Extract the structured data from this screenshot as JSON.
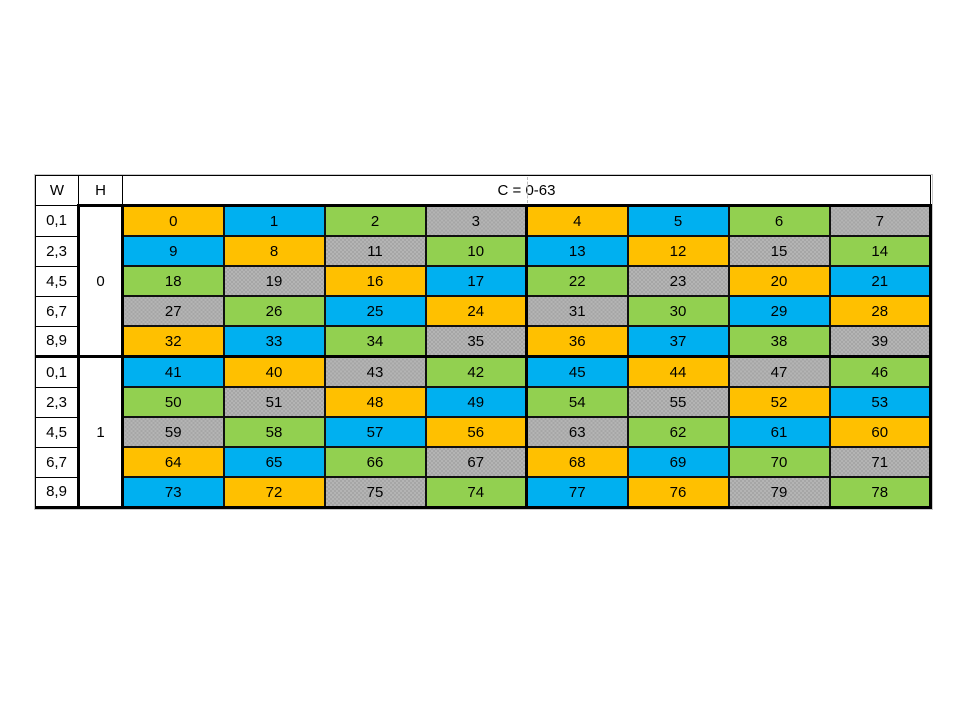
{
  "header": {
    "w": "W",
    "h": "H",
    "c": "C = 0-63"
  },
  "chart_data": {
    "type": "table",
    "title": "C = 0-63",
    "corner_headers": {
      "w": "W",
      "h": "H"
    },
    "row_group_label": "H",
    "row_label": "W",
    "color_legend": {
      "orange": "#FFC000",
      "blue": "#00B0F0",
      "green": "#92D050",
      "gray": "#A6A6A6"
    },
    "blocks": [
      {
        "h": "0",
        "rows": [
          {
            "w": "0,1",
            "cells": [
              {
                "value": 0,
                "color": "orange"
              },
              {
                "value": 1,
                "color": "blue"
              },
              {
                "value": 2,
                "color": "green"
              },
              {
                "value": 3,
                "color": "gray"
              },
              {
                "value": 4,
                "color": "orange"
              },
              {
                "value": 5,
                "color": "blue"
              },
              {
                "value": 6,
                "color": "green"
              },
              {
                "value": 7,
                "color": "gray"
              }
            ]
          },
          {
            "w": "2,3",
            "cells": [
              {
                "value": 9,
                "color": "blue"
              },
              {
                "value": 8,
                "color": "orange"
              },
              {
                "value": 11,
                "color": "gray"
              },
              {
                "value": 10,
                "color": "green"
              },
              {
                "value": 13,
                "color": "blue"
              },
              {
                "value": 12,
                "color": "orange"
              },
              {
                "value": 15,
                "color": "gray"
              },
              {
                "value": 14,
                "color": "green"
              }
            ]
          },
          {
            "w": "4,5",
            "cells": [
              {
                "value": 18,
                "color": "green"
              },
              {
                "value": 19,
                "color": "gray"
              },
              {
                "value": 16,
                "color": "orange"
              },
              {
                "value": 17,
                "color": "blue"
              },
              {
                "value": 22,
                "color": "green"
              },
              {
                "value": 23,
                "color": "gray"
              },
              {
                "value": 20,
                "color": "orange"
              },
              {
                "value": 21,
                "color": "blue"
              }
            ]
          },
          {
            "w": "6,7",
            "cells": [
              {
                "value": 27,
                "color": "gray"
              },
              {
                "value": 26,
                "color": "green"
              },
              {
                "value": 25,
                "color": "blue"
              },
              {
                "value": 24,
                "color": "orange"
              },
              {
                "value": 31,
                "color": "gray"
              },
              {
                "value": 30,
                "color": "green"
              },
              {
                "value": 29,
                "color": "blue"
              },
              {
                "value": 28,
                "color": "orange"
              }
            ]
          },
          {
            "w": "8,9",
            "cells": [
              {
                "value": 32,
                "color": "orange"
              },
              {
                "value": 33,
                "color": "blue"
              },
              {
                "value": 34,
                "color": "green"
              },
              {
                "value": 35,
                "color": "gray"
              },
              {
                "value": 36,
                "color": "orange"
              },
              {
                "value": 37,
                "color": "blue"
              },
              {
                "value": 38,
                "color": "green"
              },
              {
                "value": 39,
                "color": "gray"
              }
            ]
          }
        ]
      },
      {
        "h": "1",
        "rows": [
          {
            "w": "0,1",
            "cells": [
              {
                "value": 41,
                "color": "blue"
              },
              {
                "value": 40,
                "color": "orange"
              },
              {
                "value": 43,
                "color": "gray"
              },
              {
                "value": 42,
                "color": "green"
              },
              {
                "value": 45,
                "color": "blue"
              },
              {
                "value": 44,
                "color": "orange"
              },
              {
                "value": 47,
                "color": "gray"
              },
              {
                "value": 46,
                "color": "green"
              }
            ]
          },
          {
            "w": "2,3",
            "cells": [
              {
                "value": 50,
                "color": "green"
              },
              {
                "value": 51,
                "color": "gray"
              },
              {
                "value": 48,
                "color": "orange"
              },
              {
                "value": 49,
                "color": "blue"
              },
              {
                "value": 54,
                "color": "green"
              },
              {
                "value": 55,
                "color": "gray"
              },
              {
                "value": 52,
                "color": "orange"
              },
              {
                "value": 53,
                "color": "blue"
              }
            ]
          },
          {
            "w": "4,5",
            "cells": [
              {
                "value": 59,
                "color": "gray"
              },
              {
                "value": 58,
                "color": "green"
              },
              {
                "value": 57,
                "color": "blue"
              },
              {
                "value": 56,
                "color": "orange"
              },
              {
                "value": 63,
                "color": "gray"
              },
              {
                "value": 62,
                "color": "green"
              },
              {
                "value": 61,
                "color": "blue"
              },
              {
                "value": 60,
                "color": "orange"
              }
            ]
          },
          {
            "w": "6,7",
            "cells": [
              {
                "value": 64,
                "color": "orange"
              },
              {
                "value": 65,
                "color": "blue"
              },
              {
                "value": 66,
                "color": "green"
              },
              {
                "value": 67,
                "color": "gray"
              },
              {
                "value": 68,
                "color": "orange"
              },
              {
                "value": 69,
                "color": "blue"
              },
              {
                "value": 70,
                "color": "green"
              },
              {
                "value": 71,
                "color": "gray"
              }
            ]
          },
          {
            "w": "8,9",
            "cells": [
              {
                "value": 73,
                "color": "blue"
              },
              {
                "value": 72,
                "color": "orange"
              },
              {
                "value": 75,
                "color": "gray"
              },
              {
                "value": 74,
                "color": "green"
              },
              {
                "value": 77,
                "color": "blue"
              },
              {
                "value": 76,
                "color": "orange"
              },
              {
                "value": 79,
                "color": "gray"
              },
              {
                "value": 78,
                "color": "green"
              }
            ]
          }
        ]
      }
    ]
  }
}
